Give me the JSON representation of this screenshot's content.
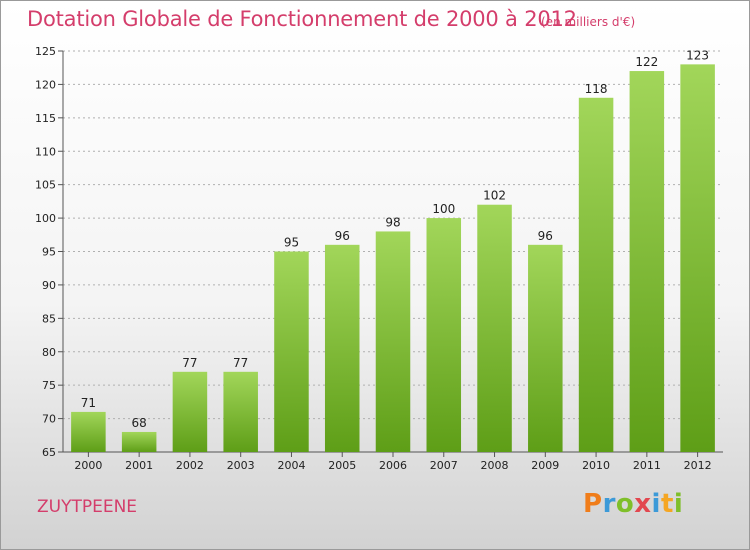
{
  "header": {
    "title": "Dotation Globale de Fonctionnement de 2000 à 2012",
    "unit": "(en milliers d'€)"
  },
  "footer": {
    "commune": "ZUYTPEENE",
    "logo": {
      "letters": [
        "P",
        "r",
        "o",
        "x",
        "i",
        "t",
        "i"
      ],
      "colors": [
        "#f07d1a",
        "#3c9ad8",
        "#7fbf2a",
        "#e2474f",
        "#3c9ad8",
        "#f5a623",
        "#7fbf2a"
      ]
    }
  },
  "chart_data": {
    "type": "bar",
    "title": "Dotation Globale de Fonctionnement de 2000 à 2012",
    "subtitle": "(en milliers d'€)",
    "categories": [
      "2000",
      "2001",
      "2002",
      "2003",
      "2004",
      "2005",
      "2006",
      "2007",
      "2008",
      "2009",
      "2010",
      "2011",
      "2012"
    ],
    "values": [
      71,
      68,
      77,
      77,
      95,
      96,
      98,
      100,
      102,
      96,
      118,
      122,
      123
    ],
    "ylim": [
      65,
      125
    ],
    "yticks": [
      65,
      70,
      75,
      80,
      85,
      90,
      95,
      100,
      105,
      110,
      115,
      120,
      125
    ],
    "grid": "horizontal",
    "data_labels": true,
    "colors": {
      "bar_light": "#a2d65a",
      "bar_dark": "#5e9e17",
      "grid": "#b0b0b0",
      "text": "#d43d6b"
    }
  }
}
